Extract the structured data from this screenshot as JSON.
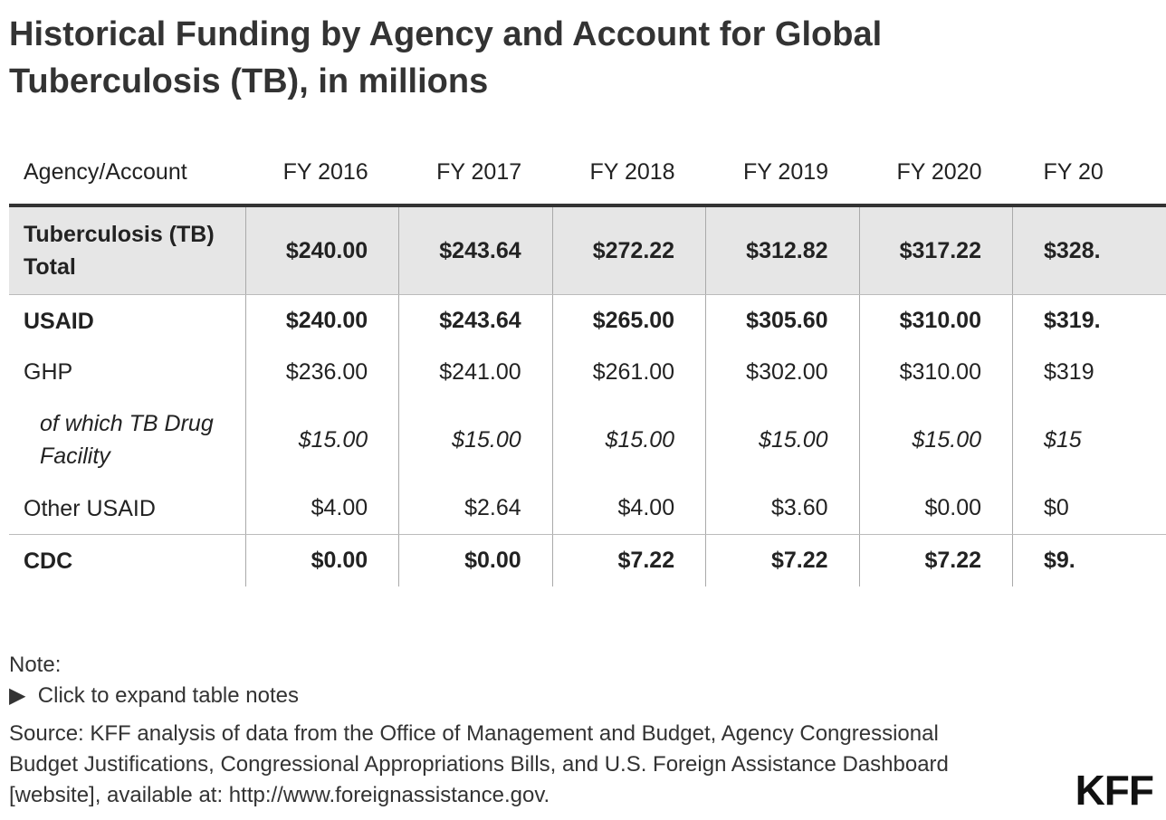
{
  "header": {
    "title": "Historical Funding by Agency and Account for Global Tuberculosis (TB), in millions"
  },
  "table": {
    "columns": [
      "Agency/Account",
      "FY 2016",
      "FY 2017",
      "FY 2018",
      "FY 2019",
      "FY 2020",
      "FY 20"
    ],
    "rows": [
      [
        "Tuberculosis (TB) Total",
        "$240.00",
        "$243.64",
        "$272.22",
        "$312.82",
        "$317.22",
        "$328."
      ],
      [
        "USAID",
        "$240.00",
        "$243.64",
        "$265.00",
        "$305.60",
        "$310.00",
        "$319."
      ],
      [
        "GHP",
        "$236.00",
        "$241.00",
        "$261.00",
        "$302.00",
        "$310.00",
        "$319"
      ],
      [
        "of which TB Drug Facility",
        "$15.00",
        "$15.00",
        "$15.00",
        "$15.00",
        "$15.00",
        "$15"
      ],
      [
        "Other USAID",
        "$4.00",
        "$2.64",
        "$4.00",
        "$3.60",
        "$0.00",
        "$0"
      ],
      [
        "CDC",
        "$0.00",
        "$0.00",
        "$7.22",
        "$7.22",
        "$7.22",
        "$9."
      ]
    ]
  },
  "footer": {
    "note": "Note:",
    "expand": "Click to expand table notes",
    "source": "Source: KFF analysis of data from the Office of Management and Budget, Agency Congressional Budget Justifications, Congressional Appropriations Bills, and U.S. Foreign Assistance Dashboard [website], available at: http://www.foreignassistance.gov.",
    "logo": "KFF"
  }
}
